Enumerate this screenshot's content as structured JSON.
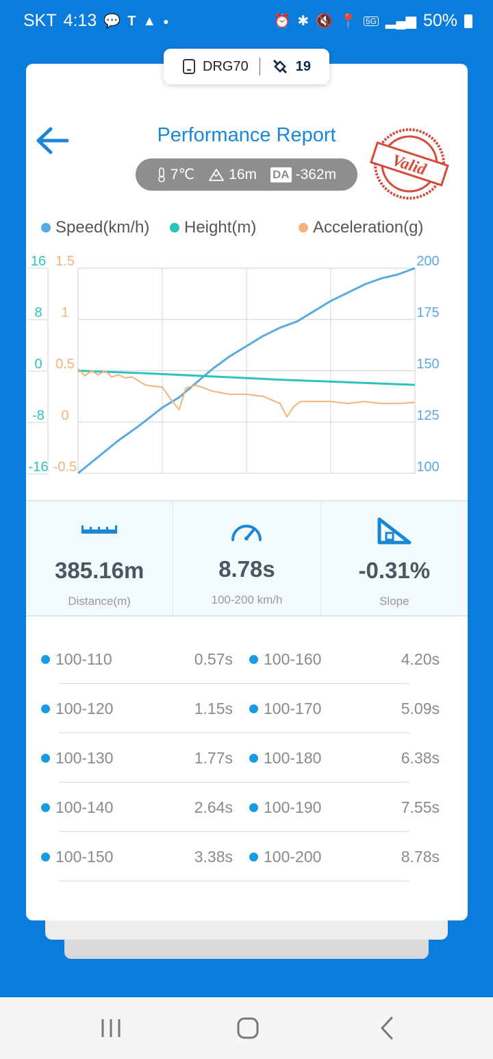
{
  "status_bar": {
    "carrier": "SKT",
    "time": "4:13",
    "battery": "50%"
  },
  "device": {
    "name": "DRG70",
    "satellites": "19"
  },
  "header": {
    "title": "Performance Report",
    "temperature": "7℃",
    "altitude": "16m",
    "da_label": "DA",
    "density_altitude": "-362m",
    "stamp_text": "Valid"
  },
  "legend": {
    "speed": "Speed(km/h)",
    "height": "Height(m)",
    "acceleration": "Acceleration(g)"
  },
  "chart_data": {
    "type": "line",
    "series": [
      {
        "name": "Speed(km/h)",
        "color": "#5aa9e0",
        "axis": "right",
        "x": [
          0,
          0.06,
          0.12,
          0.18,
          0.25,
          0.3,
          0.35,
          0.4,
          0.45,
          0.5,
          0.55,
          0.6,
          0.65,
          0.7,
          0.75,
          0.8,
          0.85,
          0.9,
          0.95,
          1.0
        ],
        "y": [
          100,
          108,
          116,
          123,
          132,
          137,
          144,
          151,
          157,
          162,
          167,
          171,
          174,
          179,
          184,
          188,
          192,
          195,
          197,
          200
        ]
      },
      {
        "name": "Height(m)",
        "color": "#2ec2bf",
        "axis": "left_outer",
        "x": [
          0,
          0.2,
          0.4,
          0.6,
          0.8,
          1.0
        ],
        "y": [
          0,
          -0.4,
          -0.9,
          -1.4,
          -1.8,
          -2.2
        ]
      },
      {
        "name": "Acceleration(g)",
        "color": "#f5b27a",
        "axis": "left_inner",
        "x": [
          0,
          0.02,
          0.04,
          0.06,
          0.08,
          0.1,
          0.12,
          0.14,
          0.16,
          0.18,
          0.2,
          0.22,
          0.25,
          0.28,
          0.3,
          0.32,
          0.35,
          0.4,
          0.45,
          0.5,
          0.55,
          0.6,
          0.62,
          0.64,
          0.66,
          0.68,
          0.7,
          0.75,
          0.8,
          0.85,
          0.9,
          0.95,
          1.0
        ],
        "y": [
          0.52,
          0.45,
          0.5,
          0.46,
          0.5,
          0.44,
          0.46,
          0.43,
          0.44,
          0.4,
          0.36,
          0.35,
          0.34,
          0.2,
          0.12,
          0.33,
          0.36,
          0.3,
          0.27,
          0.27,
          0.25,
          0.18,
          0.05,
          0.15,
          0.2,
          0.2,
          0.2,
          0.2,
          0.18,
          0.2,
          0.18,
          0.18,
          0.19
        ]
      }
    ],
    "axes": {
      "left_outer": {
        "ticks": [
          "16",
          "8",
          "0",
          "-8",
          "-16"
        ],
        "ylim": [
          -16,
          16
        ]
      },
      "left_inner": {
        "ticks": [
          "1.5",
          "1",
          "0.5",
          "0",
          "-0.5"
        ],
        "ylim": [
          -0.5,
          1.5
        ]
      },
      "right": {
        "ticks": [
          "200",
          "175",
          "150",
          "125",
          "100"
        ],
        "ylim": [
          100,
          200
        ]
      }
    },
    "grid": true
  },
  "stats": [
    {
      "value": "385.16m",
      "label": "Distance(m)",
      "icon": "ruler-icon"
    },
    {
      "value": "8.78s",
      "label": "100-200 km/h",
      "icon": "speedometer-icon"
    },
    {
      "value": "-0.31%",
      "label": "Slope",
      "icon": "slope-icon"
    }
  ],
  "splits": [
    {
      "left_range": "100-110",
      "left_time": "0.57s",
      "right_range": "100-160",
      "right_time": "4.20s"
    },
    {
      "left_range": "100-120",
      "left_time": "1.15s",
      "right_range": "100-170",
      "right_time": "5.09s"
    },
    {
      "left_range": "100-130",
      "left_time": "1.77s",
      "right_range": "100-180",
      "right_time": "6.38s"
    },
    {
      "left_range": "100-140",
      "left_time": "2.64s",
      "right_range": "100-190",
      "right_time": "7.55s"
    },
    {
      "left_range": "100-150",
      "left_time": "3.38s",
      "right_range": "100-200",
      "right_time": "8.78s"
    }
  ],
  "colors": {
    "background": "#0a7ddc",
    "accent": "#1a86d8",
    "stamp": "#d64a3a"
  }
}
